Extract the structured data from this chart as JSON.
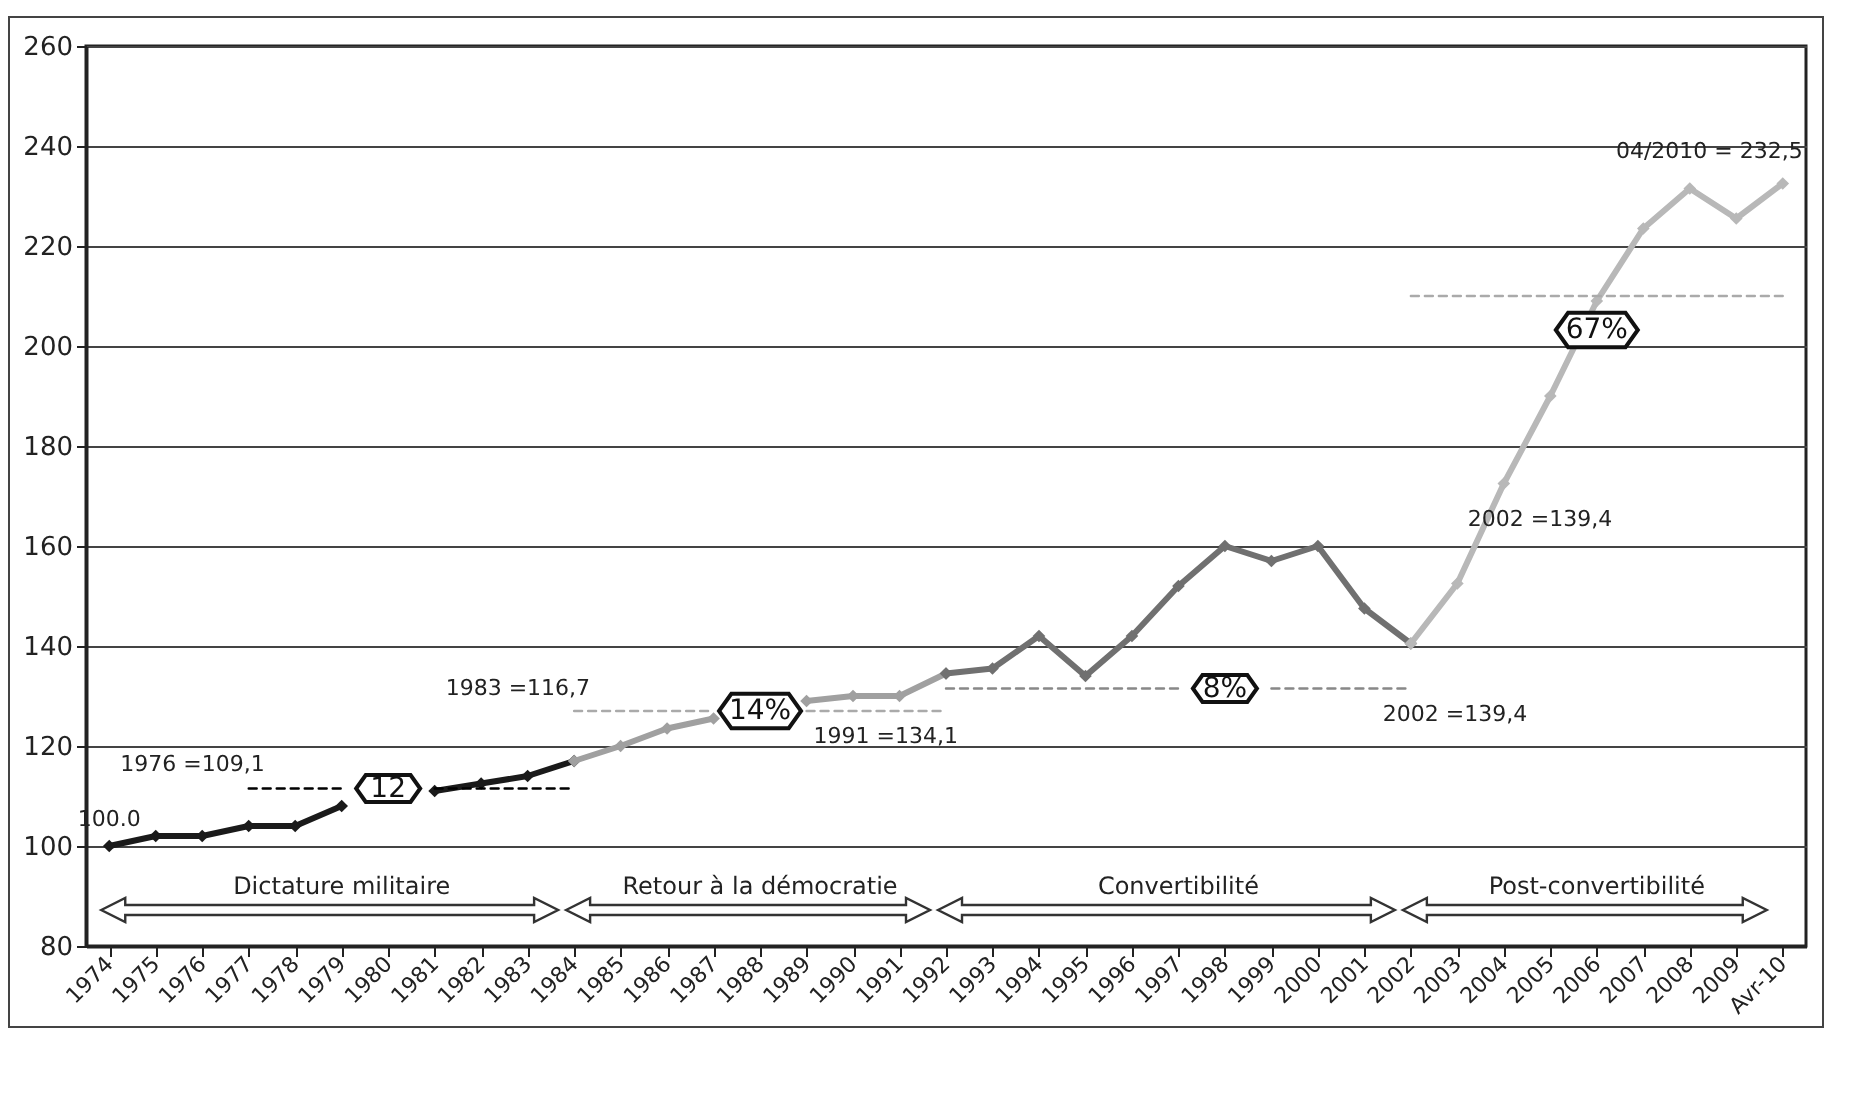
{
  "chart_data": {
    "type": "line",
    "categories": [
      "1974",
      "1975",
      "1976",
      "1977",
      "1978",
      "1979",
      "1980",
      "1981",
      "1982",
      "1983",
      "1984",
      "1985",
      "1986",
      "1987",
      "1988",
      "1989",
      "1990",
      "1991",
      "1992",
      "1993",
      "1994",
      "1995",
      "1996",
      "1997",
      "1998",
      "1999",
      "2000",
      "2001",
      "2002",
      "2003",
      "2004",
      "2005",
      "2006",
      "2007",
      "2008",
      "2009",
      "Avr-10"
    ],
    "series": [
      {
        "color": "#1a1a1a",
        "marker": "diamond",
        "values": [
          100,
          102,
          102,
          104,
          104,
          108,
          null,
          111,
          112.5,
          114,
          117,
          null,
          null,
          null,
          null,
          null,
          null,
          null,
          null,
          null,
          null,
          null,
          null,
          null,
          null,
          null,
          null,
          null,
          null,
          null,
          null,
          null,
          null,
          null,
          null,
          null,
          null
        ]
      },
      {
        "color": "#a0a0a0",
        "marker": "diamond",
        "values": [
          null,
          null,
          null,
          null,
          null,
          null,
          null,
          null,
          null,
          null,
          117,
          120,
          123.5,
          125.5,
          null,
          129,
          130,
          130,
          134.5,
          null,
          null,
          null,
          null,
          null,
          null,
          null,
          null,
          null,
          null,
          null,
          null,
          null,
          null,
          null,
          null,
          null,
          null
        ]
      },
      {
        "color": "#707070",
        "marker": "diamond",
        "values": [
          null,
          null,
          null,
          null,
          null,
          null,
          null,
          null,
          null,
          null,
          null,
          null,
          null,
          null,
          null,
          null,
          null,
          null,
          134.5,
          135.5,
          142,
          134,
          142,
          152,
          160,
          157,
          160,
          147.5,
          140.5,
          null,
          null,
          null,
          null,
          null,
          null,
          null,
          null
        ]
      },
      {
        "color": "#b8b8b8",
        "marker": "diamond",
        "values": [
          null,
          null,
          null,
          null,
          null,
          null,
          null,
          null,
          null,
          null,
          null,
          null,
          null,
          null,
          null,
          null,
          null,
          null,
          null,
          null,
          null,
          null,
          null,
          null,
          null,
          null,
          null,
          null,
          140.5,
          152.5,
          172.5,
          190,
          209,
          223.5,
          231.5,
          225.5,
          232.5
        ]
      },
      {
        "color": "#000000",
        "marker": "none",
        "line_style": "dashed",
        "values": [
          null,
          null,
          null,
          111.5,
          111.5,
          111.5,
          null,
          111.5,
          111.5,
          111.5,
          111.5,
          null,
          null,
          null,
          null,
          null,
          null,
          null,
          null,
          null,
          null,
          null,
          null,
          null,
          null,
          null,
          null,
          null,
          null,
          null,
          null,
          null,
          null,
          null,
          null,
          null,
          null
        ]
      },
      {
        "color": "#aaaaaa",
        "marker": "none",
        "line_style": "dashed",
        "values": [
          null,
          null,
          null,
          null,
          null,
          null,
          null,
          null,
          null,
          null,
          127,
          127,
          127,
          127,
          null,
          127,
          127,
          127,
          127,
          null,
          null,
          null,
          null,
          null,
          null,
          null,
          null,
          null,
          null,
          null,
          null,
          null,
          null,
          null,
          null,
          null,
          null
        ]
      },
      {
        "color": "#888888",
        "marker": "none",
        "line_style": "dashed",
        "values": [
          null,
          null,
          null,
          null,
          null,
          null,
          null,
          null,
          null,
          null,
          null,
          null,
          null,
          null,
          null,
          null,
          null,
          null,
          131.5,
          131.5,
          131.5,
          131.5,
          131.5,
          131.5,
          null,
          131.5,
          131.5,
          131.5,
          131.5,
          null,
          null,
          null,
          null,
          null,
          null,
          null,
          null
        ]
      },
      {
        "color": "#aaaaaa",
        "marker": "none",
        "line_style": "dashed",
        "values": [
          null,
          null,
          null,
          null,
          null,
          null,
          null,
          null,
          null,
          null,
          null,
          null,
          null,
          null,
          null,
          null,
          null,
          null,
          null,
          null,
          null,
          null,
          null,
          null,
          null,
          null,
          null,
          null,
          210,
          210,
          210,
          210,
          210,
          210,
          210,
          210,
          210
        ]
      }
    ],
    "ylim": [
      80,
      260
    ],
    "yticks": [
      80,
      100,
      120,
      140,
      160,
      180,
      200,
      220,
      240,
      260
    ],
    "grid": "y",
    "annotations": [
      {
        "text": "100.0",
        "x": "1974",
        "y": 100
      },
      {
        "text": "1976 =109,1",
        "x": "1977",
        "y": 111.5
      },
      {
        "text": "1983 =116,7",
        "x": "1984",
        "y": 127
      },
      {
        "text": "1991 =134,1",
        "x": "1992",
        "y": 127
      },
      {
        "text": "2002 =139,4",
        "x": "2002",
        "y": 131.5
      },
      {
        "text": "2002 =139,4",
        "x": "2004",
        "y": 172.5
      },
      {
        "text": "04/2010 = 232,5",
        "x": "Avr-10",
        "y": 232.5
      },
      {
        "text": "12",
        "x": "1980",
        "y": 111.5
      },
      {
        "text": "14%",
        "x": "1988",
        "y": 127
      },
      {
        "text": "8%",
        "x": "1998",
        "y": 131.5
      },
      {
        "text": "67%",
        "x": "2006",
        "y": 210
      },
      "Dictature militaire",
      "Retour à la démocratie",
      "Convertibilité",
      "Post-convertibilité"
    ]
  }
}
